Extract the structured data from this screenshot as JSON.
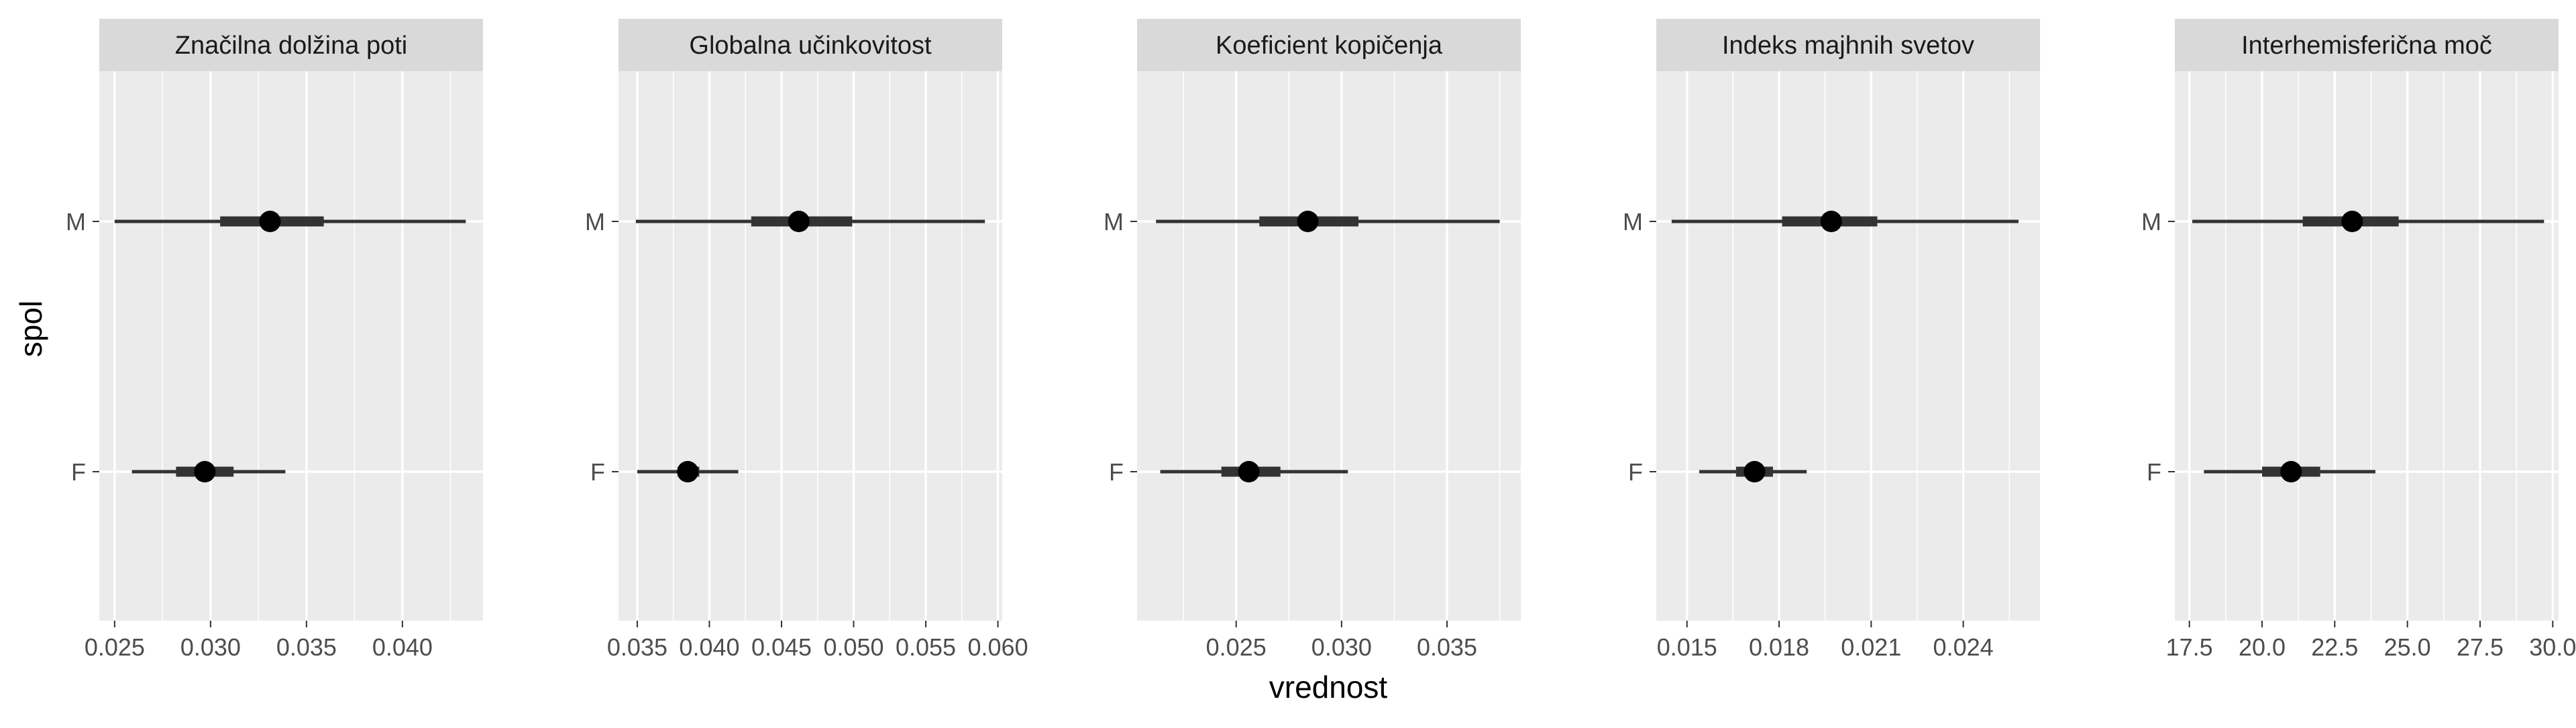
{
  "chart_data": {
    "type": "scatter",
    "description_style": "faceted point-interval plot",
    "xlabel": "vrednost",
    "ylabel": "spol",
    "categories": [
      "F",
      "M"
    ],
    "grid": true,
    "legend": "none",
    "colors": {
      "panel_bg": "#EBEBEB",
      "strip_bg": "#D9D9D9",
      "grid": "#FFFFFF",
      "point": "#000000",
      "interval": "#333333"
    },
    "facets": [
      {
        "title": "Značilna dolžina poti",
        "xlim": [
          0.0242,
          0.0442
        ],
        "ticks": [
          0.025,
          0.03,
          0.035,
          0.04
        ],
        "tick_labels": [
          "0.025",
          "0.030",
          "0.035",
          "0.040"
        ],
        "series": [
          {
            "group": "M",
            "point": 0.0331,
            "inner": [
              0.0305,
              0.0359
            ],
            "outer": [
              0.025,
              0.0433
            ]
          },
          {
            "group": "F",
            "point": 0.0297,
            "inner": [
              0.0282,
              0.0312
            ],
            "outer": [
              0.0259,
              0.0339
            ]
          }
        ]
      },
      {
        "title": "Globalna učinkovitost",
        "xlim": [
          0.0337,
          0.0603
        ],
        "ticks": [
          0.035,
          0.04,
          0.045,
          0.05,
          0.055,
          0.06
        ],
        "tick_labels": [
          "0.035",
          "0.040",
          "0.045",
          "0.050",
          "0.055",
          "0.060"
        ],
        "series": [
          {
            "group": "M",
            "point": 0.0462,
            "inner": [
              0.0429,
              0.0499
            ],
            "outer": [
              0.0349,
              0.0591
            ]
          },
          {
            "group": "F",
            "point": 0.0385,
            "inner": [
              0.0378,
              0.0393
            ],
            "outer": [
              0.035,
              0.042
            ]
          }
        ]
      },
      {
        "title": "Koeficient kopičenja",
        "xlim": [
          0.0203,
          0.0385
        ],
        "ticks": [
          0.025,
          0.03,
          0.035
        ],
        "tick_labels": [
          "0.025",
          "0.030",
          "0.035"
        ],
        "series": [
          {
            "group": "M",
            "point": 0.0284,
            "inner": [
              0.0261,
              0.0308
            ],
            "outer": [
              0.0212,
              0.0375
            ]
          },
          {
            "group": "F",
            "point": 0.0256,
            "inner": [
              0.0243,
              0.0271
            ],
            "outer": [
              0.0214,
              0.0303
            ]
          }
        ]
      },
      {
        "title": "Indeks majhnih svetov",
        "xlim": [
          0.014,
          0.0265
        ],
        "ticks": [
          0.015,
          0.018,
          0.021,
          0.024
        ],
        "tick_labels": [
          "0.015",
          "0.018",
          "0.021",
          "0.024"
        ],
        "series": [
          {
            "group": "M",
            "point": 0.0197,
            "inner": [
              0.0181,
              0.0212
            ],
            "outer": [
              0.0145,
              0.0258
            ]
          },
          {
            "group": "F",
            "point": 0.0172,
            "inner": [
              0.0166,
              0.0178
            ],
            "outer": [
              0.0154,
              0.0189
            ]
          }
        ]
      },
      {
        "title": "Interhemisferična moč",
        "xlim": [
          17.0,
          30.2
        ],
        "ticks": [
          17.5,
          20.0,
          22.5,
          25.0,
          27.5,
          30.0
        ],
        "tick_labels": [
          "17.5",
          "20.0",
          "22.5",
          "25.0",
          "27.5",
          "30.0"
        ],
        "series": [
          {
            "group": "M",
            "point": 23.1,
            "inner": [
              21.4,
              24.7
            ],
            "outer": [
              17.6,
              29.7
            ]
          },
          {
            "group": "F",
            "point": 21.0,
            "inner": [
              20.0,
              22.0
            ],
            "outer": [
              18.0,
              23.9
            ]
          }
        ]
      }
    ]
  }
}
